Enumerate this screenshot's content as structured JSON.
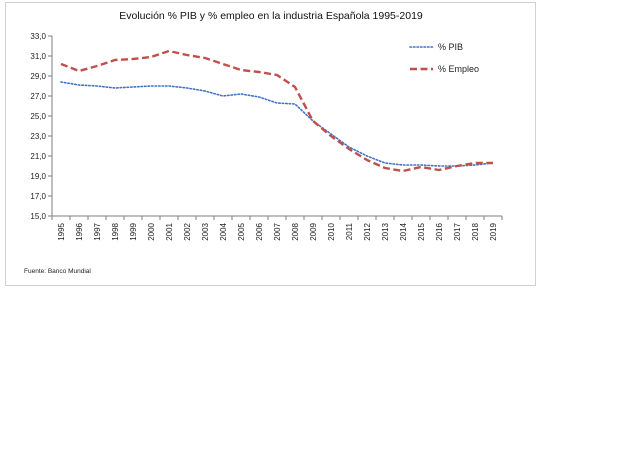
{
  "chart_data": {
    "type": "line",
    "title": "Evolución % PIB y % empleo  en la industria Española  1995-2019",
    "xlabel": "",
    "ylabel": "",
    "x": [
      "1995",
      "1996",
      "1997",
      "1998",
      "1999",
      "2000",
      "2001",
      "2002",
      "2003",
      "2004",
      "2005",
      "2006",
      "2007",
      "2008",
      "2009",
      "2010",
      "2011",
      "2012",
      "2013",
      "2014",
      "2015",
      "2016",
      "2017",
      "2018",
      "2019"
    ],
    "yticks": [
      "15,0",
      "17,0",
      "19,0",
      "21,0",
      "23,0",
      "25,0",
      "27,0",
      "29,0",
      "31,0",
      "33,0"
    ],
    "ylim": [
      15,
      33
    ],
    "grid": false,
    "legend_position": "top-right",
    "series": [
      {
        "name": "% PIB",
        "color": "#4472c4",
        "style": "dotted",
        "values": [
          28.4,
          28.1,
          28.0,
          27.8,
          27.9,
          28.0,
          28.0,
          27.8,
          27.5,
          27.0,
          27.2,
          26.9,
          26.3,
          26.2,
          24.5,
          23.2,
          21.9,
          21.0,
          20.3,
          20.1,
          20.1,
          20.0,
          20.0,
          20.1,
          20.3
        ]
      },
      {
        "name": "% Empleo",
        "color": "#c0504d",
        "style": "dashed",
        "values": [
          30.2,
          29.5,
          30.0,
          30.6,
          30.7,
          30.9,
          31.5,
          31.1,
          30.8,
          30.2,
          29.6,
          29.4,
          29.1,
          27.9,
          24.5,
          23.0,
          21.7,
          20.6,
          19.8,
          19.5,
          19.9,
          19.6,
          20.0,
          20.3,
          20.3
        ]
      }
    ],
    "source_note": "Fuente: Banco Mundial"
  }
}
